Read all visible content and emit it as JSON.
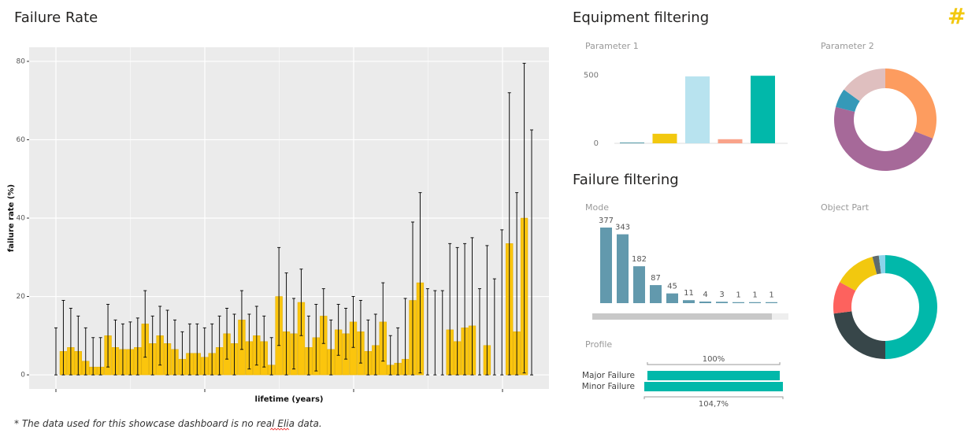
{
  "page": {
    "icon": "#",
    "sections": [
      "Equipment filtering",
      "Failure filtering"
    ],
    "footnote": [
      "* The data used for this showcase dashboard is no real ",
      "Elia",
      " data."
    ]
  },
  "chart_data": [
    {
      "type": "errorbar",
      "title": "Failure Rate",
      "x_label": "lifetime (years)",
      "y_label": "failure rate (%)",
      "color": "#fbc50d",
      "grid": true,
      "ylim": [
        -3.6,
        83.6
      ],
      "yticks": [
        0,
        20,
        40,
        60,
        80
      ],
      "values": [
        0,
        6,
        7,
        6,
        3.5,
        2,
        2,
        10,
        7,
        6.5,
        6.5,
        7,
        13,
        8,
        10,
        8,
        6.5,
        4,
        5.5,
        5.5,
        4.5,
        5.5,
        7,
        10.5,
        8,
        14,
        8.5,
        10,
        8.5,
        2.5,
        20,
        11,
        10.5,
        18.5,
        7,
        9.5,
        15,
        6.5,
        11.5,
        10.5,
        13.5,
        11,
        6,
        7.5,
        13.5,
        2.5,
        3,
        4,
        19,
        23.5,
        0,
        0,
        0,
        11.5,
        8.5,
        12,
        12.5,
        0,
        7.5,
        0,
        0,
        33.5,
        11,
        40,
        0
      ],
      "error_low": [
        0,
        0,
        0,
        0,
        0,
        0,
        0,
        2,
        0,
        0,
        0,
        0,
        4.5,
        0,
        2.5,
        0,
        0,
        0,
        0,
        0,
        0,
        0,
        0,
        4,
        0,
        6.5,
        1.5,
        2.5,
        2,
        0,
        7.5,
        0,
        1.5,
        10,
        0,
        1,
        8,
        0,
        5,
        4,
        7,
        3,
        0,
        0,
        3.5,
        0,
        0,
        0,
        0,
        0.5,
        0,
        0,
        0,
        0,
        0,
        0,
        0,
        0,
        0,
        0,
        0,
        0,
        0,
        0.5,
        0
      ],
      "error_high": [
        12,
        19,
        17,
        15,
        12,
        9.5,
        9.5,
        18,
        14,
        13,
        13.5,
        14.5,
        21.5,
        15,
        17.5,
        16.5,
        14,
        11,
        13,
        13,
        12,
        13,
        15,
        17,
        15.5,
        21.5,
        15.5,
        17.5,
        15,
        9.5,
        32.5,
        26,
        19.5,
        27,
        15,
        18,
        22,
        14,
        18,
        17,
        20,
        19,
        14,
        15.5,
        23.5,
        10,
        12,
        19.5,
        39,
        46.5,
        22,
        21.5,
        21.5,
        33.5,
        32.5,
        33.5,
        35,
        22,
        33,
        24.5,
        37,
        72,
        46.5,
        79.5,
        62.5
      ]
    },
    {
      "type": "bar",
      "title": "Parameter 1",
      "categories": [
        null,
        null,
        null,
        null,
        null
      ],
      "values": [
        5,
        70,
        490,
        30,
        495
      ],
      "colors": [
        "#3c8c9c",
        "#f2c80f",
        "#b8e3ef",
        "#f9a38a",
        "#01b8aa"
      ],
      "ylim": [
        0,
        600
      ],
      "yticks": [
        0,
        500
      ]
    },
    {
      "type": "donut",
      "title": "Parameter 2",
      "values": [
        31,
        48,
        6,
        15
      ],
      "colors": [
        "#fd9c5f",
        "#a66999",
        "#3599b8",
        "#dfbfbf"
      ]
    },
    {
      "type": "labeled-bar",
      "title": "Mode",
      "values": [
        377,
        343,
        182,
        87,
        45,
        11,
        4,
        3,
        1,
        1,
        1
      ],
      "color": "#6299ad"
    },
    {
      "type": "donut",
      "title": "Object Part",
      "values": [
        50,
        23,
        10,
        13,
        2,
        2
      ],
      "colors": [
        "#01b8aa",
        "#374649",
        "#fd625e",
        "#f2c80f",
        "#5f6b6d",
        "#8ad4eb"
      ]
    },
    {
      "type": "hbar",
      "title": "Profile",
      "categories": [
        "Major Failure",
        "Minor Failure"
      ],
      "values": [
        100,
        104.7
      ],
      "value_labels": [
        "100%",
        "104,7%"
      ],
      "color": "#01b8aa"
    }
  ]
}
